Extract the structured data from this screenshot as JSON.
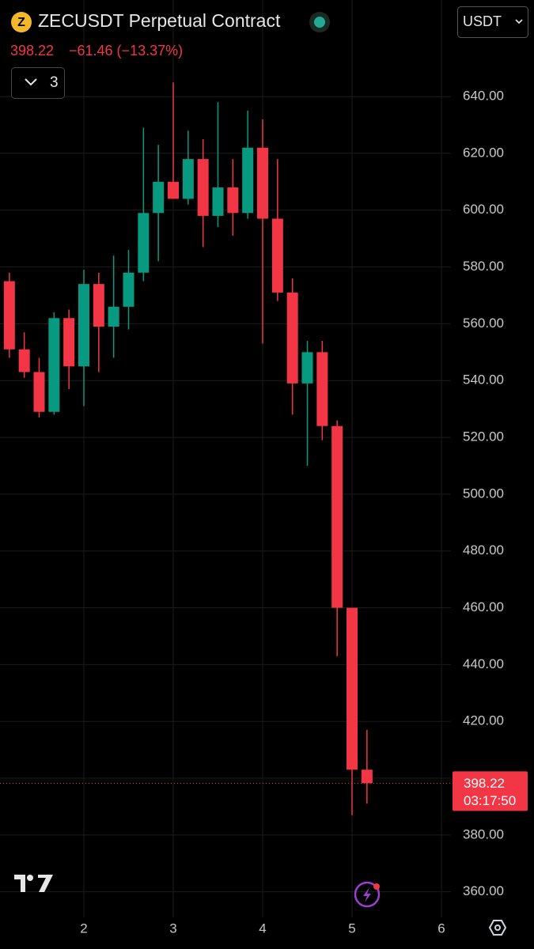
{
  "chart_data": {
    "type": "candlestick",
    "title": "ZECUSDT Perpetual Contract",
    "last_price": 398.22,
    "change": "−61.46 (−13.37%)",
    "indicators": "3",
    "currency": "USDT",
    "countdown": "03:17:50",
    "x": [
      1.1667,
      1.3333,
      1.5,
      1.6667,
      1.8333,
      2,
      2.1667,
      2.3333,
      2.5,
      2.6667,
      2.8333,
      3,
      3.1667,
      3.3333,
      3.5,
      3.6667,
      3.8333,
      4,
      4.1667,
      4.3333,
      4.5,
      4.6667,
      4.8333,
      5,
      5.1667
    ],
    "open": [
      575,
      551,
      543,
      529,
      562,
      545,
      574,
      559,
      566,
      578,
      599,
      610,
      604,
      618,
      598,
      608,
      599,
      622,
      597,
      571,
      539,
      550,
      524,
      460,
      403
    ],
    "high": [
      578,
      557,
      548,
      564,
      565,
      579,
      578,
      584,
      586,
      629,
      623,
      645,
      628,
      625,
      638,
      618,
      635,
      632,
      618,
      576,
      554,
      554,
      526,
      460,
      417
    ],
    "low": [
      548,
      541,
      527,
      528,
      537,
      531,
      543,
      548,
      558,
      575,
      582,
      604,
      602,
      587,
      594,
      591,
      597,
      553,
      568,
      528,
      510,
      519,
      443,
      387,
      391
    ],
    "close": [
      551,
      543,
      529,
      562,
      545,
      574,
      559,
      566,
      578,
      599,
      610,
      604,
      618,
      598,
      608,
      599,
      622,
      597,
      571,
      539,
      550,
      524,
      460,
      403,
      398.22
    ],
    "up_color": "#089981",
    "down_color": "#f23645",
    "xlim": [
      1.062,
      6.106
    ],
    "xticks": [
      2,
      3,
      4,
      5,
      6
    ],
    "ylim": [
      351,
      674
    ],
    "yticks": [
      {
        "value": 360,
        "label": "360.00"
      },
      {
        "value": 380,
        "label": "380.00"
      },
      {
        "value": 400,
        "label": "400.00"
      },
      {
        "value": 420,
        "label": "420.00"
      },
      {
        "value": 440,
        "label": "440.00"
      },
      {
        "value": 460,
        "label": "460.00"
      },
      {
        "value": 480,
        "label": "480.00"
      },
      {
        "value": 500,
        "label": "500.00"
      },
      {
        "value": 520,
        "label": "520.00"
      },
      {
        "value": 540,
        "label": "540.00"
      },
      {
        "value": 560,
        "label": "560.00"
      },
      {
        "value": 580,
        "label": "580.00"
      },
      {
        "value": 600,
        "label": "600.00"
      },
      {
        "value": 620,
        "label": "620.00"
      },
      {
        "value": 640,
        "label": "640.00"
      }
    ],
    "grid": true
  }
}
